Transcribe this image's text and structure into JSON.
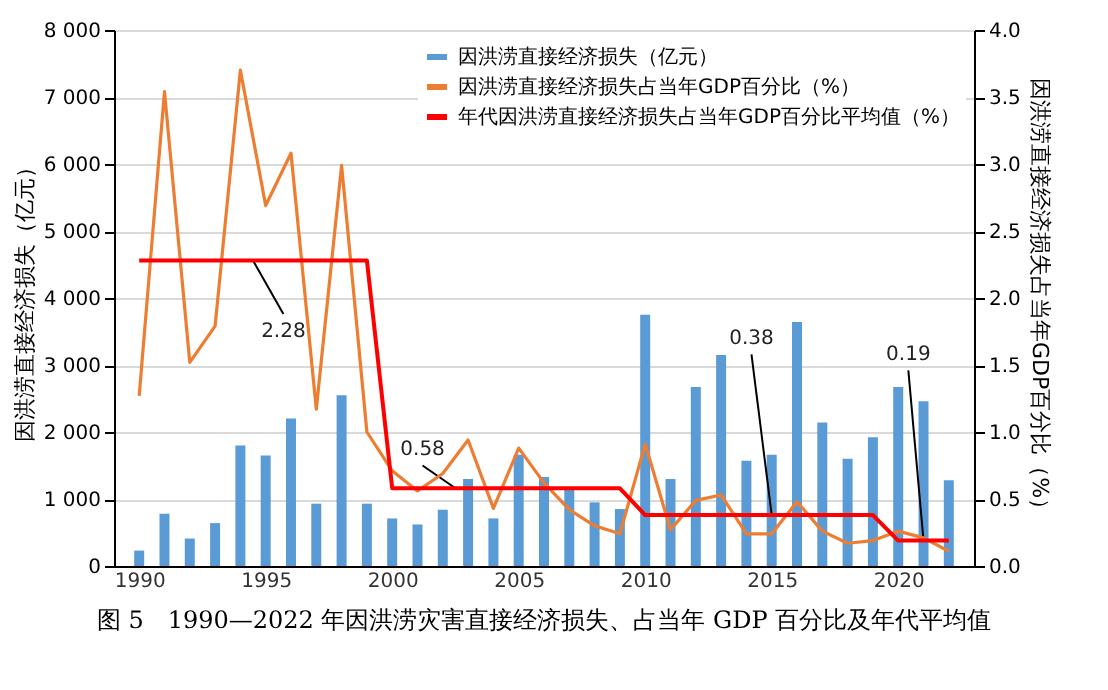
{
  "chart_data": {
    "type": "bar",
    "title": "图 5　1990—2022 年因洪涝灾害直接经济损失、占当年 GDP 百分比及年代平均值",
    "ylabel": "因洪涝直接经济损失（亿元）",
    "y2label": "因洪涝直接经济损失占当年GDP百分比（%）",
    "x": [
      1990,
      1991,
      1992,
      1993,
      1994,
      1995,
      1996,
      1997,
      1998,
      1999,
      2000,
      2001,
      2002,
      2003,
      2004,
      2005,
      2006,
      2007,
      2008,
      2009,
      2010,
      2011,
      2012,
      2013,
      2014,
      2015,
      2016,
      2017,
      2018,
      2019,
      2020,
      2021,
      2022
    ],
    "series": [
      {
        "name": "因洪涝直接经济损失（亿元）",
        "color": "#5b9bd5",
        "values": [
          230,
          780,
          410,
          640,
          1800,
          1650,
          2200,
          930,
          2550,
          930,
          710,
          620,
          840,
          1300,
          710,
          1660,
          1330,
          1140,
          950,
          850,
          3750,
          1300,
          2670,
          3150,
          1570,
          1660,
          3640,
          2140,
          1600,
          1920,
          2670,
          2460,
          1280
        ]
      },
      {
        "name": "因洪涝直接经济损失占当年GDP百分比（%）",
        "type": "line",
        "axis": "y2",
        "color": "#ed7d31",
        "line_style": "solid",
        "values": [
          1.27,
          3.54,
          1.52,
          1.79,
          3.7,
          2.69,
          3.08,
          1.17,
          2.99,
          1.0,
          0.71,
          0.56,
          0.69,
          0.94,
          0.43,
          0.88,
          0.62,
          0.42,
          0.3,
          0.24,
          0.91,
          0.27,
          0.49,
          0.53,
          0.24,
          0.24,
          0.48,
          0.26,
          0.17,
          0.19,
          0.26,
          0.21,
          0.11
        ]
      },
      {
        "name": "年代因洪涝直接经济损失占当年GDP百分比平均值（%）",
        "type": "line",
        "axis": "y2",
        "color": "#ff0000",
        "line_style": "solid",
        "values": [
          2.28,
          2.28,
          2.28,
          2.28,
          2.28,
          2.28,
          2.28,
          2.28,
          2.28,
          2.28,
          0.58,
          0.58,
          0.58,
          0.58,
          0.58,
          0.58,
          0.58,
          0.58,
          0.58,
          0.58,
          0.38,
          0.38,
          0.38,
          0.38,
          0.38,
          0.38,
          0.38,
          0.38,
          0.38,
          0.38,
          0.19,
          0.19,
          0.19
        ]
      }
    ],
    "xlim": [
      1989.4,
      2022.6
    ],
    "xticks": [
      1990,
      1995,
      2000,
      2005,
      2010,
      2015,
      2020
    ],
    "ylim": [
      0,
      8000
    ],
    "yticks": [
      0,
      {
        "value": 1000,
        "label": "1 000"
      },
      {
        "value": 2000,
        "label": "2 000"
      },
      {
        "value": 3000,
        "label": "3 000"
      },
      {
        "value": 4000,
        "label": "4 000"
      },
      {
        "value": 5000,
        "label": "5 000"
      },
      {
        "value": 6000,
        "label": "6 000"
      },
      {
        "value": 7000,
        "label": "7 000"
      },
      {
        "value": 8000,
        "label": "8 000"
      }
    ],
    "y2lim": [
      0,
      4
    ],
    "y2ticks": [
      {
        "value": 0,
        "label": "0.0"
      },
      0.5,
      {
        "value": 1,
        "label": "1.0"
      },
      1.5,
      {
        "value": 2,
        "label": "2.0"
      },
      2.5,
      {
        "value": 3,
        "label": "3.0"
      },
      3.5,
      {
        "value": 4,
        "label": "4.0"
      }
    ],
    "grid": "y",
    "legend": "top right",
    "marker": "none",
    "annotations": [
      {
        "text": "2.28",
        "x": 1994.5,
        "y": 4560
      },
      {
        "text": "0.58",
        "x": 2002.5,
        "y": 1160
      },
      {
        "text": "0.38",
        "x": 2015,
        "y": 760
      },
      {
        "text": "0.19",
        "x": 2021,
        "y": 380
      }
    ]
  }
}
